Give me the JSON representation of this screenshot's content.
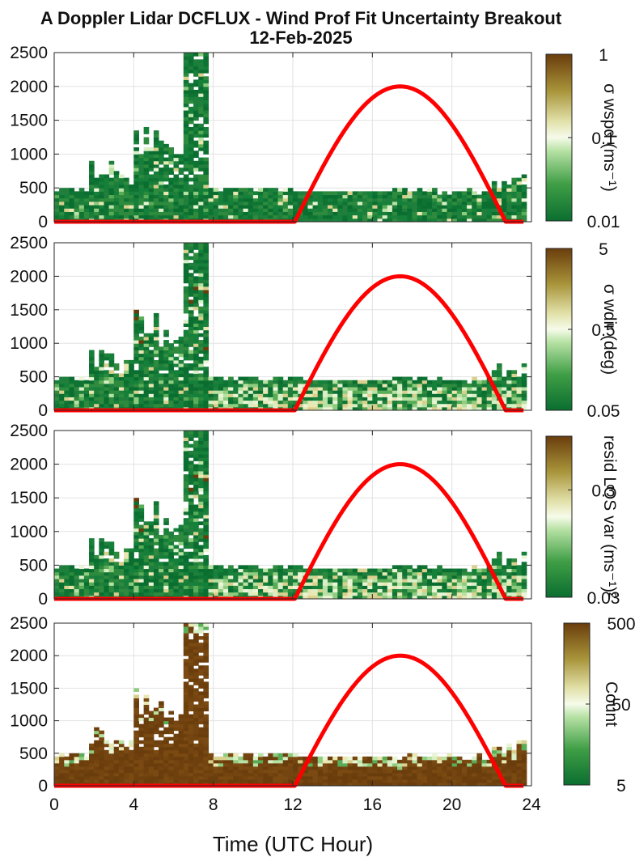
{
  "title": "A Doppler Lidar DCFLUX - Wind Prof Fit Uncertainty Breakout",
  "subtitle": "12-Feb-2025",
  "xlabel": "Time (UTC Hour)",
  "chart_data": [
    {
      "type": "heatmap",
      "xlim": [
        0,
        24
      ],
      "ylim": [
        0,
        2500
      ],
      "x_ticks": [
        0,
        4,
        8,
        12,
        16,
        20,
        24
      ],
      "y_ticks": [
        0,
        500,
        1000,
        1500,
        2000,
        2500
      ],
      "grid": true,
      "colorbar": {
        "label": "σ wspd (ms⁻¹)",
        "scale": "log",
        "ticks": [
          0.01,
          0.1,
          1
        ],
        "tick_labels": [
          "0.01",
          "0.1",
          "1"
        ]
      },
      "overlay": {
        "name": "solar elevation curve",
        "color": "#ff0000",
        "start": 12.1,
        "end": 22.7,
        "peak_x": 17.4,
        "peak_y": 2000
      }
    },
    {
      "type": "heatmap",
      "xlim": [
        0,
        24
      ],
      "ylim": [
        0,
        2500
      ],
      "x_ticks": [
        0,
        4,
        8,
        12,
        16,
        20,
        24
      ],
      "y_ticks": [
        0,
        500,
        1000,
        1500,
        2000,
        2500
      ],
      "grid": true,
      "colorbar": {
        "label": "σ wdir (deg)",
        "scale": "log",
        "ticks": [
          0.05,
          0.5,
          5
        ],
        "tick_labels": [
          "0.05",
          "0.5",
          "5"
        ]
      },
      "overlay": {
        "name": "solar elevation curve",
        "color": "#ff0000",
        "start": 12.1,
        "end": 22.7,
        "peak_x": 17.4,
        "peak_y": 2000
      }
    },
    {
      "type": "heatmap",
      "xlim": [
        0,
        24
      ],
      "ylim": [
        0,
        2500
      ],
      "x_ticks": [
        0,
        4,
        8,
        12,
        16,
        20,
        24
      ],
      "y_ticks": [
        0,
        500,
        1000,
        1500,
        2000,
        2500
      ],
      "grid": true,
      "colorbar": {
        "label": "resid LOS var (ms⁻¹)²",
        "scale": "log",
        "ticks": [
          0.03,
          0.3
        ],
        "tick_labels": [
          "0.03",
          "0.3"
        ]
      },
      "overlay": {
        "name": "solar elevation curve",
        "color": "#ff0000",
        "start": 12.1,
        "end": 22.7,
        "peak_x": 17.4,
        "peak_y": 2000
      }
    },
    {
      "type": "heatmap",
      "xlim": [
        0,
        24
      ],
      "ylim": [
        0,
        2500
      ],
      "x_ticks": [
        0,
        4,
        8,
        12,
        16,
        20,
        24
      ],
      "y_ticks": [
        0,
        500,
        1000,
        1500,
        2000,
        2500
      ],
      "grid": true,
      "colorbar": {
        "label": "Count",
        "scale": "log",
        "ticks": [
          5,
          50,
          500
        ],
        "tick_labels": [
          "5",
          "50",
          "500"
        ]
      },
      "overlay": {
        "name": "solar elevation curve",
        "color": "#ff0000",
        "start": 12.1,
        "end": 22.7,
        "peak_x": 17.4,
        "peak_y": 2000
      }
    }
  ]
}
